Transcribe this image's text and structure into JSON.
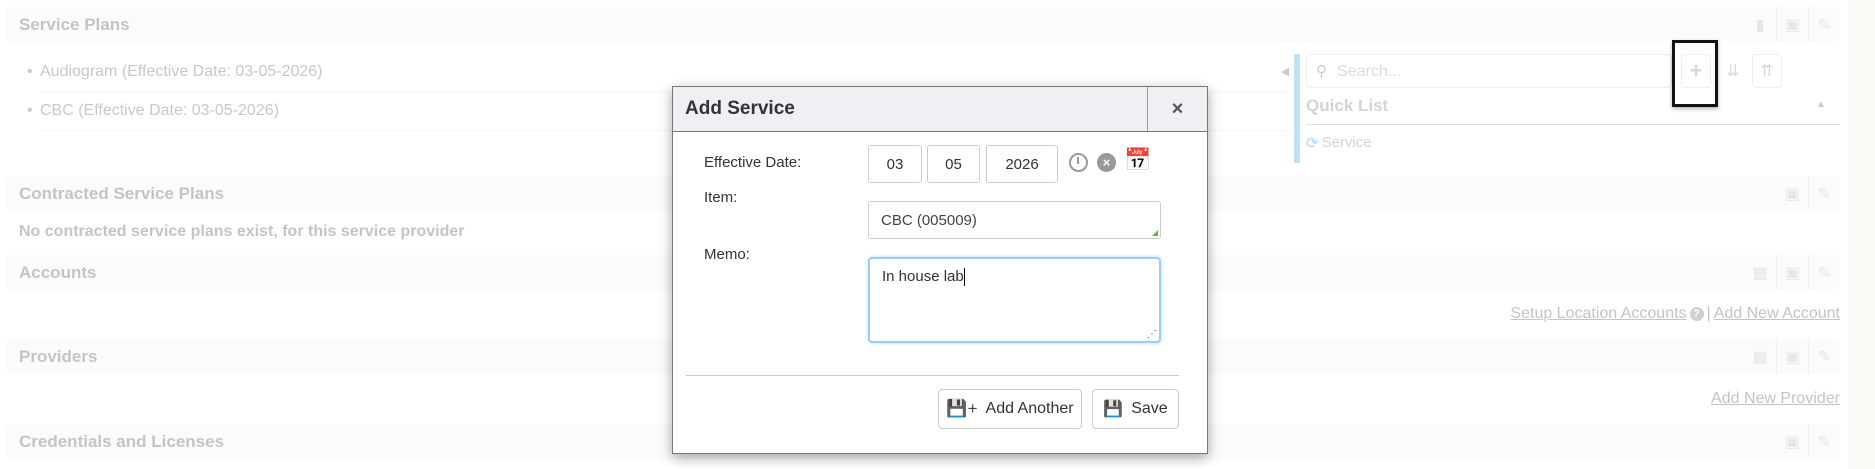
{
  "sections": [
    {
      "title": "Service Plans"
    },
    {
      "title": "Contracted Service Plans"
    },
    {
      "title": "Accounts"
    },
    {
      "title": "Providers"
    },
    {
      "title": "Credentials and Licenses"
    }
  ],
  "service_plans": {
    "items": [
      "Audiogram (Effective Date: 03-05-2026)",
      "CBC (Effective Date: 03-05-2026)"
    ]
  },
  "contracted": {
    "empty_text": "No contracted service plans exist, for this service provider"
  },
  "accounts": {
    "setup_link": "Setup Location Accounts",
    "separator": "|",
    "add_link": "Add New Account"
  },
  "providers": {
    "add_link": "Add New Provider"
  },
  "quick_panel": {
    "search_placeholder": "Search...",
    "title": "Quick List",
    "items": [
      "Service"
    ],
    "accent": "#bfe3f6"
  },
  "modal": {
    "title": "Add Service",
    "close": "×",
    "effective_date_label": "Effective Date:",
    "month": "03",
    "day": "05",
    "year": "2026",
    "item_label": "Item:",
    "item_value": "CBC (005009)",
    "memo_label": "Memo:",
    "memo_value": "In house lab",
    "add_another_label": "Add Another",
    "save_label": "Save"
  }
}
